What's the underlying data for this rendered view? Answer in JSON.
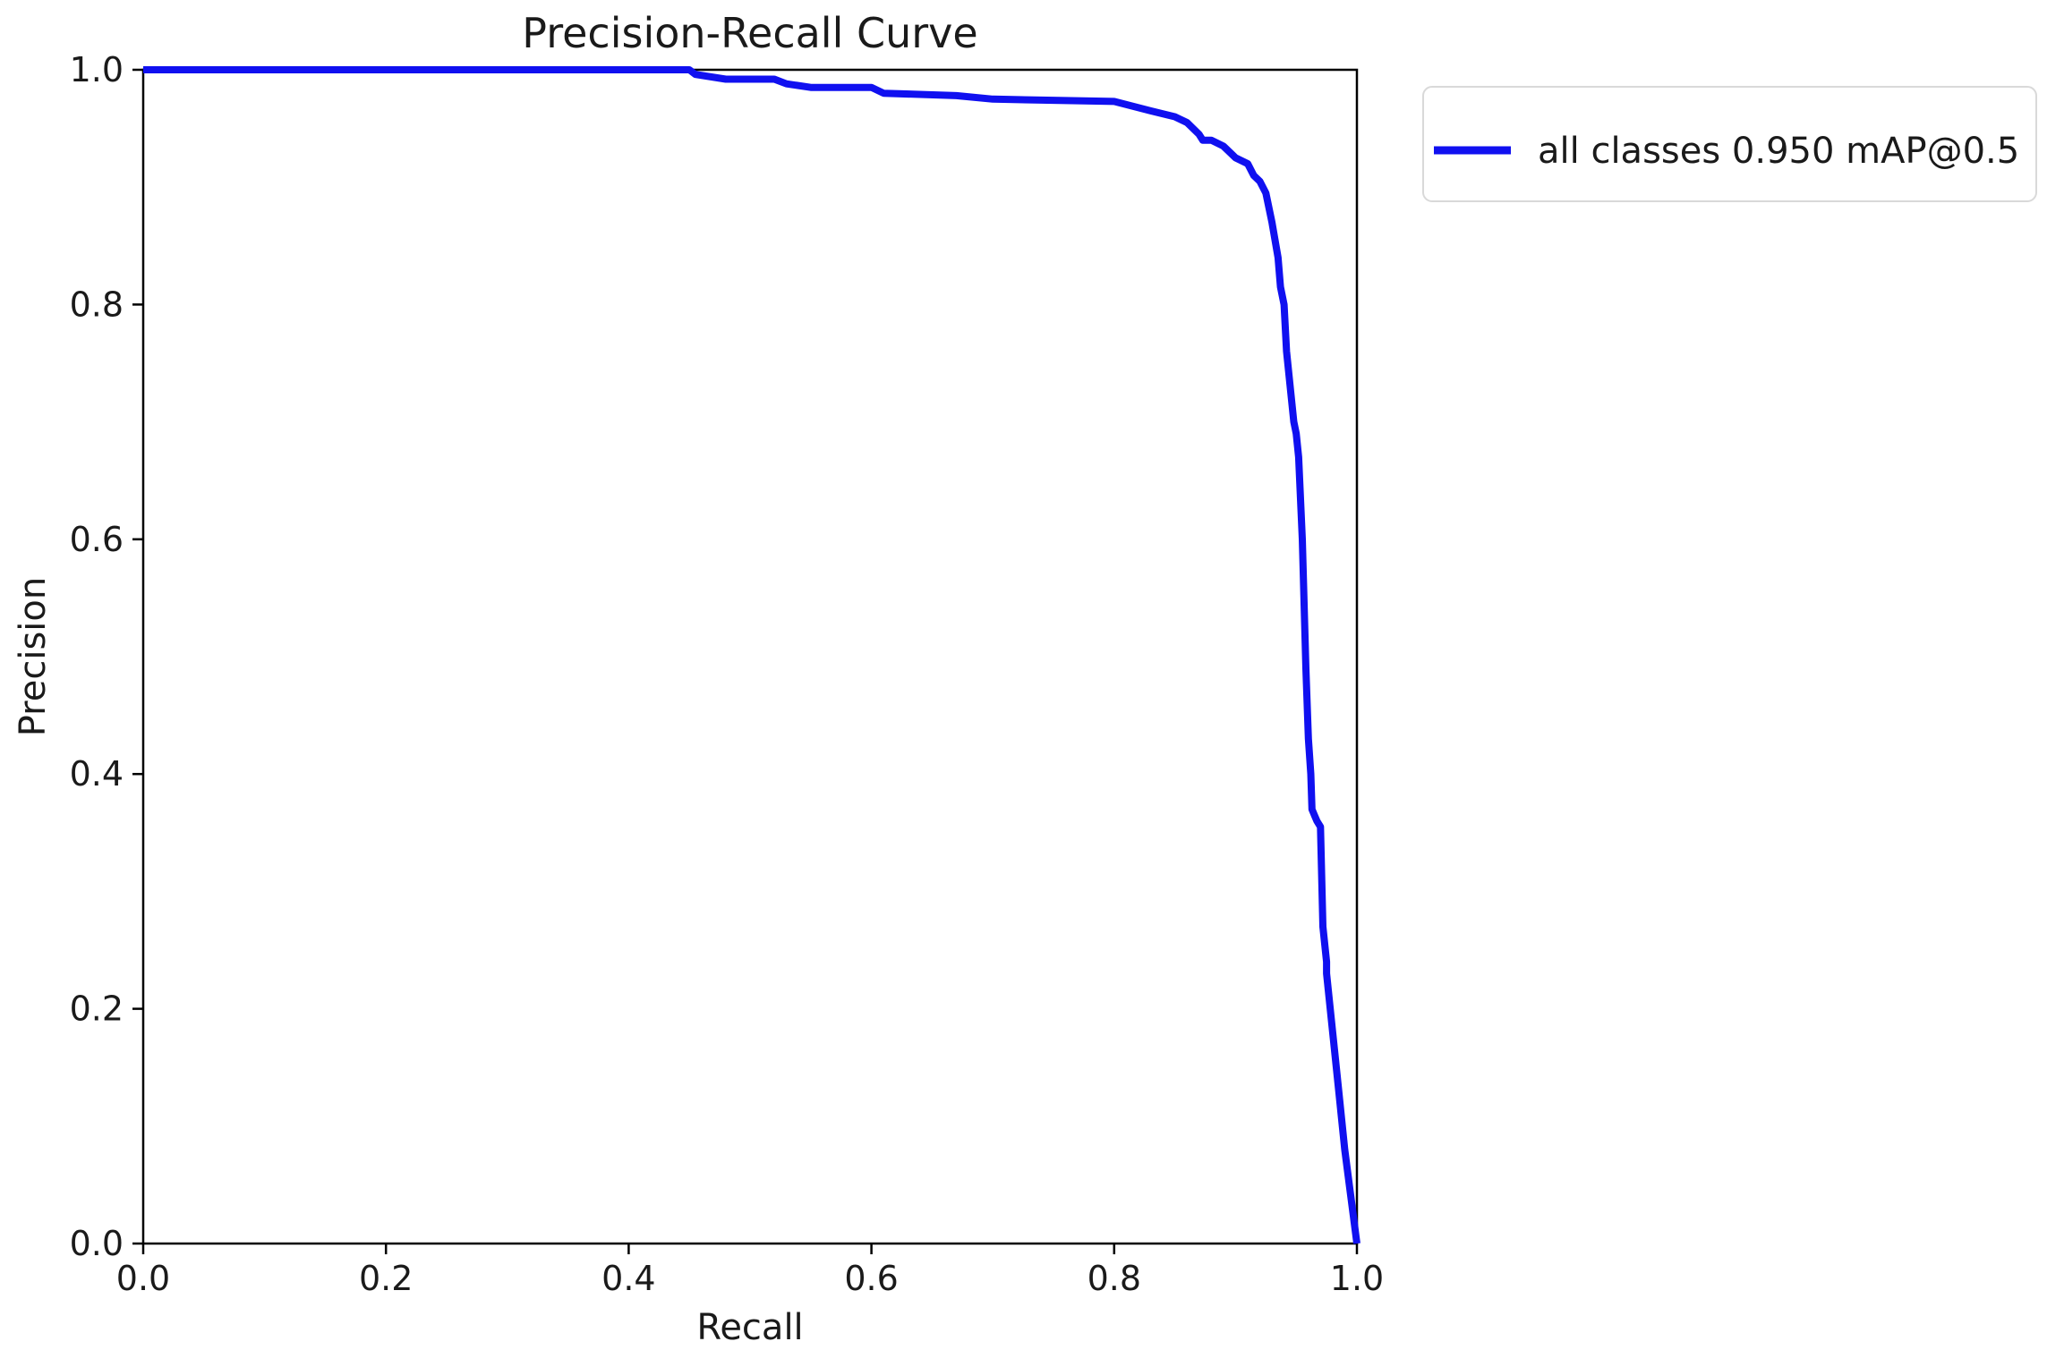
{
  "chart_data": {
    "type": "line",
    "title": "Precision-Recall Curve",
    "xlabel": "Recall",
    "ylabel": "Precision",
    "xlim": [
      0.0,
      1.0
    ],
    "ylim": [
      0.0,
      1.0
    ],
    "xticks": [
      "0.0",
      "0.2",
      "0.4",
      "0.6",
      "0.8",
      "1.0"
    ],
    "yticks": [
      "0.0",
      "0.2",
      "0.4",
      "0.6",
      "0.8",
      "1.0"
    ],
    "grid": false,
    "legend_position": "outside-top-right",
    "series": [
      {
        "name": "all classes 0.950 mAP@0.5",
        "color": "#1010f0",
        "x": [
          0.0,
          0.45,
          0.455,
          0.48,
          0.52,
          0.53,
          0.55,
          0.6,
          0.61,
          0.67,
          0.7,
          0.75,
          0.8,
          0.83,
          0.85,
          0.86,
          0.87,
          0.873,
          0.88,
          0.89,
          0.895,
          0.9,
          0.91,
          0.915,
          0.92,
          0.925,
          0.93,
          0.935,
          0.937,
          0.94,
          0.942,
          0.944,
          0.946,
          0.948,
          0.95,
          0.952,
          0.955,
          0.958,
          0.96,
          0.962,
          0.963,
          0.965,
          0.967,
          0.97,
          0.972,
          0.975,
          0.975,
          0.98,
          0.985,
          0.99,
          0.995,
          1.0
        ],
        "y": [
          1.0,
          1.0,
          0.996,
          0.992,
          0.992,
          0.988,
          0.985,
          0.985,
          0.98,
          0.978,
          0.975,
          0.974,
          0.973,
          0.965,
          0.96,
          0.955,
          0.945,
          0.94,
          0.94,
          0.935,
          0.93,
          0.925,
          0.92,
          0.91,
          0.905,
          0.895,
          0.87,
          0.84,
          0.815,
          0.8,
          0.76,
          0.74,
          0.72,
          0.7,
          0.69,
          0.67,
          0.6,
          0.49,
          0.43,
          0.4,
          0.37,
          0.365,
          0.36,
          0.355,
          0.27,
          0.24,
          0.23,
          0.18,
          0.13,
          0.08,
          0.04,
          0.0
        ]
      }
    ]
  }
}
